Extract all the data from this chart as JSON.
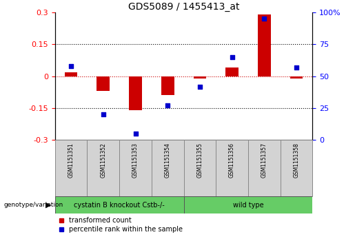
{
  "title": "GDS5089 / 1455413_at",
  "samples": [
    "GSM1151351",
    "GSM1151352",
    "GSM1151353",
    "GSM1151354",
    "GSM1151355",
    "GSM1151356",
    "GSM1151357",
    "GSM1151358"
  ],
  "transformed_count": [
    0.02,
    -0.07,
    -0.16,
    -0.09,
    -0.01,
    0.04,
    0.29,
    -0.01
  ],
  "percentile_rank": [
    58,
    20,
    5,
    27,
    42,
    65,
    95,
    57
  ],
  "ylim_left": [
    -0.3,
    0.3
  ],
  "ylim_right": [
    0,
    100
  ],
  "bar_color": "#cc0000",
  "dot_color": "#0000cc",
  "background_plot": "#ffffff",
  "background_label": "#d3d3d3",
  "background_group": "#66cc66",
  "group_labels": [
    "cystatin B knockout Cstb-/-",
    "wild type"
  ],
  "group_split": 4,
  "genotype_label": "genotype/variation",
  "legend_bar": "transformed count",
  "legend_dot": "percentile rank within the sample",
  "yticks_left": [
    -0.3,
    -0.15,
    0,
    0.15,
    0.3
  ],
  "yticks_right": [
    0,
    25,
    50,
    75,
    100
  ],
  "hlines_dotted": [
    -0.15,
    0.15
  ],
  "zero_line_color": "#cc0000",
  "bar_width": 0.4
}
